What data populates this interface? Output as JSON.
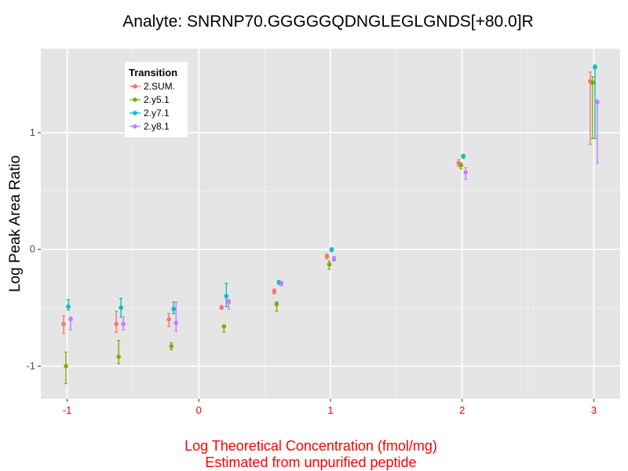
{
  "chart_data": {
    "type": "scatter",
    "title": "Analyte: SNRNP70.GGGGGQDNGLEGLGNDS[+80.0]R",
    "xlabel": "Log Theoretical Concentration (fmol/mg)",
    "xlabel_line2": "Estimated from unpurified peptide",
    "ylabel": "Log Peak Area Ratio",
    "xlim": [
      -1.2,
      3.2
    ],
    "ylim": [
      -1.28,
      1.72
    ],
    "x_ticks": [
      -1,
      0,
      1,
      2,
      3
    ],
    "x_tick_labels": [
      "-1",
      "0",
      "1",
      "2",
      "3"
    ],
    "y_ticks": [
      -1,
      0,
      1
    ],
    "y_tick_labels": [
      "-1",
      "0",
      "1"
    ],
    "grid": true,
    "legend": {
      "title": "Transition",
      "position": "top-left"
    },
    "series": [
      {
        "name": "2.SUM.",
        "color": "#F8766D",
        "points": [
          {
            "x": -1,
            "y": -0.64,
            "lo": -0.72,
            "hi": -0.57
          },
          {
            "x": -0.6,
            "y": -0.64,
            "lo": -0.71,
            "hi": -0.53
          },
          {
            "x": -0.2,
            "y": -0.6,
            "lo": -0.66,
            "hi": -0.55
          },
          {
            "x": 0.2,
            "y": -0.5,
            "lo": -0.51,
            "hi": -0.48
          },
          {
            "x": 0.6,
            "y": -0.36,
            "lo": -0.38,
            "hi": -0.34
          },
          {
            "x": 1,
            "y": -0.06,
            "lo": -0.08,
            "hi": -0.04
          },
          {
            "x": 2,
            "y": 0.74,
            "lo": 0.71,
            "hi": 0.77
          },
          {
            "x": 3,
            "y": 1.44,
            "lo": 0.9,
            "hi": 1.52
          }
        ]
      },
      {
        "name": "2.y5.1",
        "color": "#7CAE00",
        "points": [
          {
            "x": -1,
            "y": -1.0,
            "lo": -1.15,
            "hi": -0.88
          },
          {
            "x": -0.6,
            "y": -0.92,
            "lo": -0.98,
            "hi": -0.78
          },
          {
            "x": -0.2,
            "y": -0.83,
            "lo": -0.86,
            "hi": -0.8
          },
          {
            "x": 0.2,
            "y": -0.66,
            "lo": -0.71,
            "hi": -0.65
          },
          {
            "x": 0.6,
            "y": -0.47,
            "lo": -0.53,
            "hi": -0.45
          },
          {
            "x": 1,
            "y": -0.13,
            "lo": -0.17,
            "hi": -0.1
          },
          {
            "x": 2,
            "y": 0.72,
            "lo": 0.69,
            "hi": 0.74
          },
          {
            "x": 3,
            "y": 1.43,
            "lo": 0.95,
            "hi": 1.48
          }
        ]
      },
      {
        "name": "2.y7.1",
        "color": "#00BFC4",
        "points": [
          {
            "x": -1,
            "y": -0.49,
            "lo": -0.52,
            "hi": -0.43
          },
          {
            "x": -0.6,
            "y": -0.5,
            "lo": -0.58,
            "hi": -0.42
          },
          {
            "x": -0.2,
            "y": -0.51,
            "lo": -0.55,
            "hi": -0.45
          },
          {
            "x": 0.2,
            "y": -0.4,
            "lo": -0.49,
            "hi": -0.29
          },
          {
            "x": 0.6,
            "y": -0.28,
            "lo": -0.3,
            "hi": -0.27
          },
          {
            "x": 1,
            "y": 0.0,
            "lo": -0.02,
            "hi": 0.01
          },
          {
            "x": 2,
            "y": 0.8,
            "lo": 0.78,
            "hi": 0.81
          },
          {
            "x": 3,
            "y": 1.56,
            "lo": 0.95,
            "hi": 1.58
          }
        ]
      },
      {
        "name": "2.y8.1",
        "color": "#C77CFF",
        "points": [
          {
            "x": -1,
            "y": -0.6,
            "lo": -0.69,
            "hi": -0.58
          },
          {
            "x": -0.6,
            "y": -0.64,
            "lo": -0.69,
            "hi": -0.58
          },
          {
            "x": -0.2,
            "y": -0.63,
            "lo": -0.7,
            "hi": -0.45
          },
          {
            "x": 0.2,
            "y": -0.45,
            "lo": -0.51,
            "hi": -0.43
          },
          {
            "x": 0.6,
            "y": -0.29,
            "lo": -0.31,
            "hi": -0.28
          },
          {
            "x": 1,
            "y": -0.08,
            "lo": -0.1,
            "hi": -0.06
          },
          {
            "x": 2,
            "y": 0.66,
            "lo": 0.6,
            "hi": 0.7
          },
          {
            "x": 3,
            "y": 1.26,
            "lo": 0.74,
            "hi": 1.28
          }
        ]
      }
    ]
  }
}
